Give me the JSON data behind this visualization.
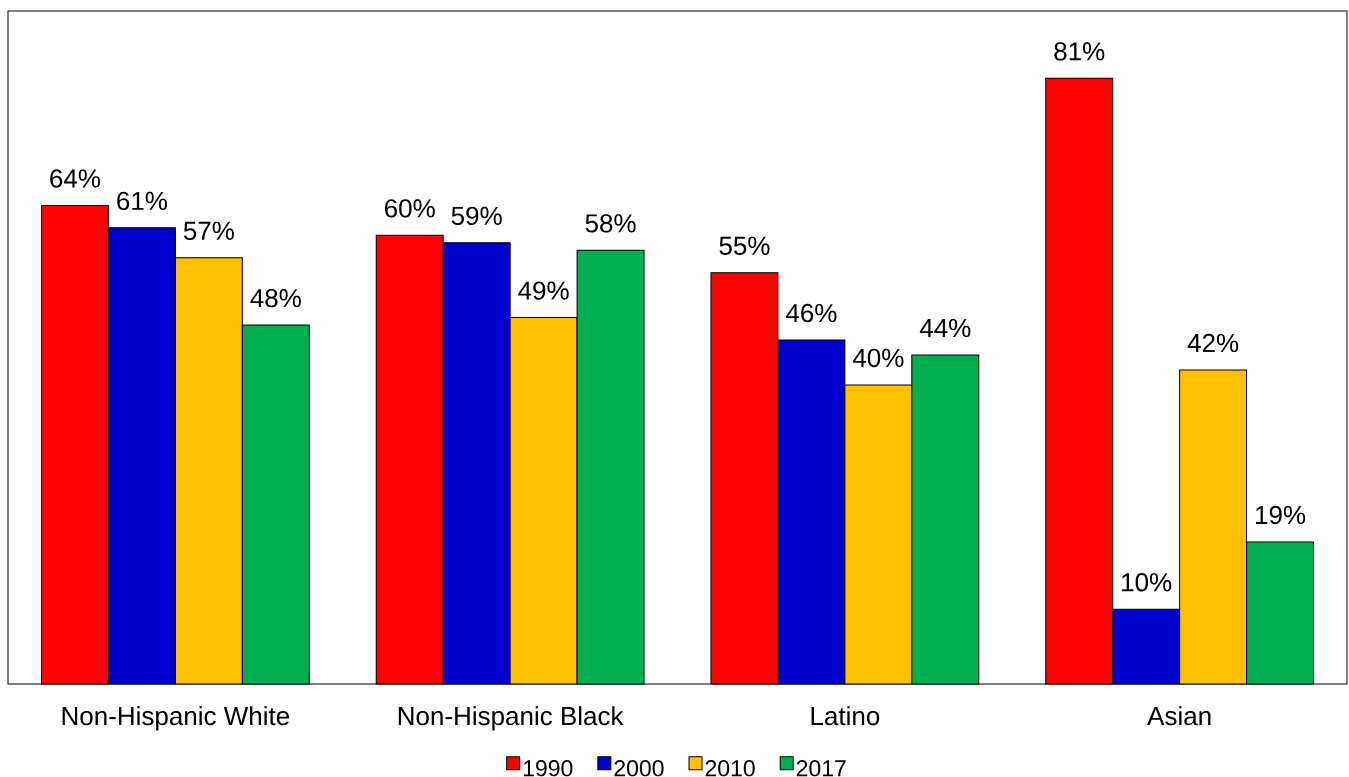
{
  "chart_data": {
    "type": "bar",
    "categories": [
      "Non-Hispanic White",
      "Non-Hispanic Black",
      "Latino",
      "Asian"
    ],
    "series": [
      {
        "name": "1990",
        "color": "#ff0000",
        "values": [
          64,
          60,
          55,
          81
        ],
        "value_labels": [
          "64%",
          "60%",
          "55%",
          "81%"
        ]
      },
      {
        "name": "2000",
        "color": "#0000cc",
        "values": [
          61,
          59,
          46,
          10
        ],
        "value_labels": [
          "61%",
          "59%",
          "46%",
          "10%"
        ]
      },
      {
        "name": "2010",
        "color": "#ffc000",
        "values": [
          57,
          49,
          40,
          42
        ],
        "value_labels": [
          "57%",
          "49%",
          "40%",
          "42%"
        ]
      },
      {
        "name": "2017",
        "color": "#00b050",
        "values": [
          48,
          58,
          44,
          19
        ],
        "value_labels": [
          "48%",
          "58%",
          "44%",
          "19%"
        ]
      }
    ],
    "legend": "bottom"
  }
}
